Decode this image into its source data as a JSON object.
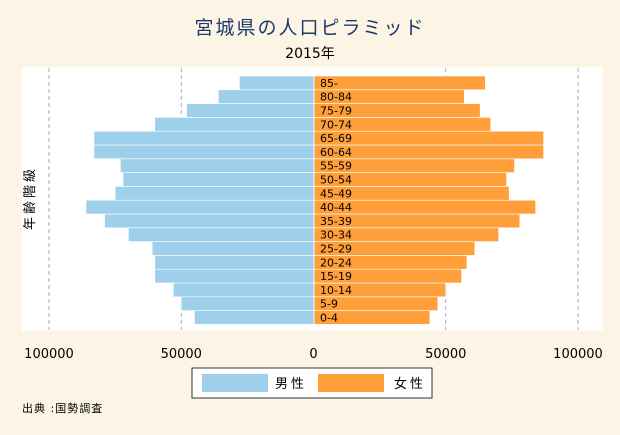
{
  "chart_data": {
    "type": "bar",
    "orientation": "horizontal",
    "layout": "population-pyramid",
    "title": "宮城県の人口ピラミッド",
    "subtitle": "2015年",
    "ylabel": "年齢階級",
    "xlim": [
      -100000,
      100000
    ],
    "xticks": [
      -100000,
      -50000,
      0,
      50000,
      100000
    ],
    "xtick_labels": [
      "100000",
      "50000",
      "0",
      "50000",
      "100000"
    ],
    "grid": true,
    "legend_position": "bottom",
    "categories": [
      "0-4",
      "5-9",
      "10-14",
      "15-19",
      "20-24",
      "25-29",
      "30-34",
      "35-39",
      "40-44",
      "45-49",
      "50-54",
      "55-59",
      "60-64",
      "65-69",
      "70-74",
      "75-79",
      "80-84",
      "85-"
    ],
    "series": [
      {
        "name": "男性",
        "side": "left",
        "color": "#9ecfeb",
        "values": [
          45000,
          50000,
          53000,
          60000,
          60000,
          61000,
          70000,
          79000,
          86000,
          75000,
          72000,
          73000,
          83000,
          83000,
          60000,
          48000,
          36000,
          28000
        ]
      },
      {
        "name": "女性",
        "side": "right",
        "color": "#ff9f3a",
        "values": [
          44000,
          47000,
          50000,
          56000,
          58000,
          61000,
          70000,
          78000,
          84000,
          74000,
          73000,
          76000,
          87000,
          87000,
          67000,
          63000,
          57000,
          65000
        ]
      }
    ]
  },
  "source_note": "出典 :国勢調査"
}
